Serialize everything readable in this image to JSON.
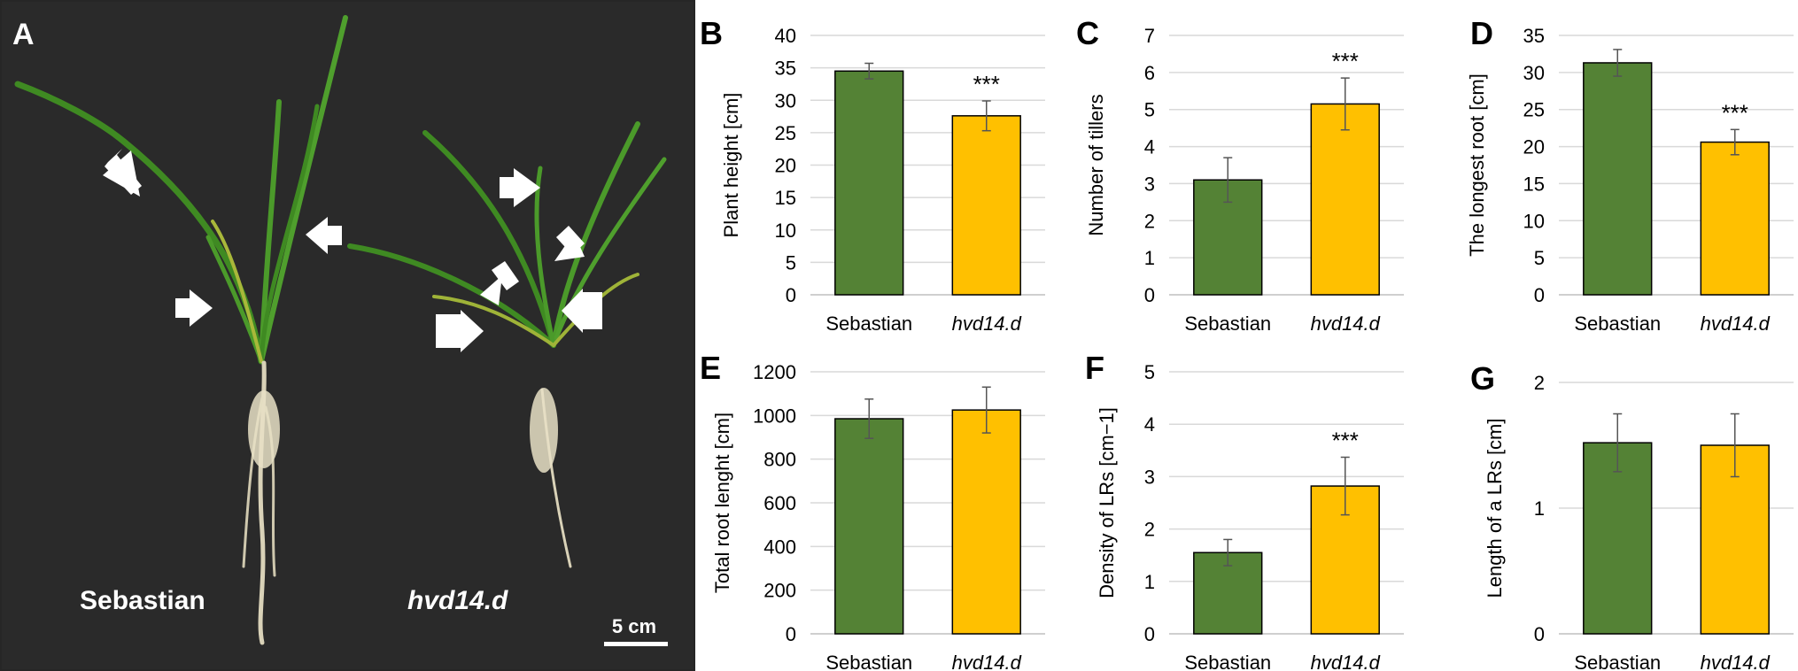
{
  "photo_panel": {
    "letter": "A",
    "label_left": "Sebastian",
    "label_right": "hvd14.d",
    "scale_bar": "5 cm"
  },
  "colors": {
    "sebastian": "#548235",
    "hvd14d": "#FFC000",
    "background": "#262626"
  },
  "icons": [
    "arrow-icon",
    "scale-bar-icon"
  ],
  "chart_data": [
    {
      "type": "bar",
      "panel": "B",
      "ylabel": "Plant height [cm]",
      "ylim": [
        0,
        40
      ],
      "ystep": 5,
      "categories": [
        "Sebastian",
        "hvd14.d"
      ],
      "values": [
        34.5,
        27.6
      ],
      "errors": [
        1.2,
        2.3
      ],
      "sig": [
        "",
        "***"
      ]
    },
    {
      "type": "bar",
      "panel": "C",
      "ylabel": "Number of tillers",
      "ylim": [
        0,
        7
      ],
      "ystep": 1,
      "categories": [
        "Sebastian",
        "hvd14.d"
      ],
      "values": [
        3.1,
        5.15
      ],
      "errors": [
        0.6,
        0.7
      ],
      "sig": [
        "",
        "***"
      ]
    },
    {
      "type": "bar",
      "panel": "D",
      "ylabel": "The longest root [cm]",
      "ylim": [
        0,
        35
      ],
      "ystep": 5,
      "categories": [
        "Sebastian",
        "hvd14.d"
      ],
      "values": [
        31.3,
        20.6
      ],
      "errors": [
        1.8,
        1.7
      ],
      "sig": [
        "",
        "***"
      ]
    },
    {
      "type": "bar",
      "panel": "E",
      "ylabel": "Total root lenght [cm]",
      "ylim": [
        0,
        1200
      ],
      "ystep": 200,
      "categories": [
        "Sebastian",
        "hvd14.d"
      ],
      "values": [
        985,
        1025
      ],
      "errors": [
        90,
        105
      ],
      "sig": [
        "",
        ""
      ]
    },
    {
      "type": "bar",
      "panel": "F",
      "ylabel": "Density of LRs [cm−1]",
      "ylim": [
        0,
        5
      ],
      "ystep": 1,
      "categories": [
        "Sebastian",
        "hvd14.d"
      ],
      "values": [
        1.55,
        2.82
      ],
      "errors": [
        0.25,
        0.55
      ],
      "sig": [
        "",
        "***"
      ]
    },
    {
      "type": "bar",
      "panel": "G",
      "ylabel": "Length of a LRs [cm]",
      "ylim": [
        0,
        2
      ],
      "ystep": 1,
      "categories": [
        "Sebastian",
        "hvd14.d"
      ],
      "values": [
        1.52,
        1.5
      ],
      "errors": [
        0.23,
        0.25
      ],
      "sig": [
        "",
        ""
      ]
    }
  ]
}
